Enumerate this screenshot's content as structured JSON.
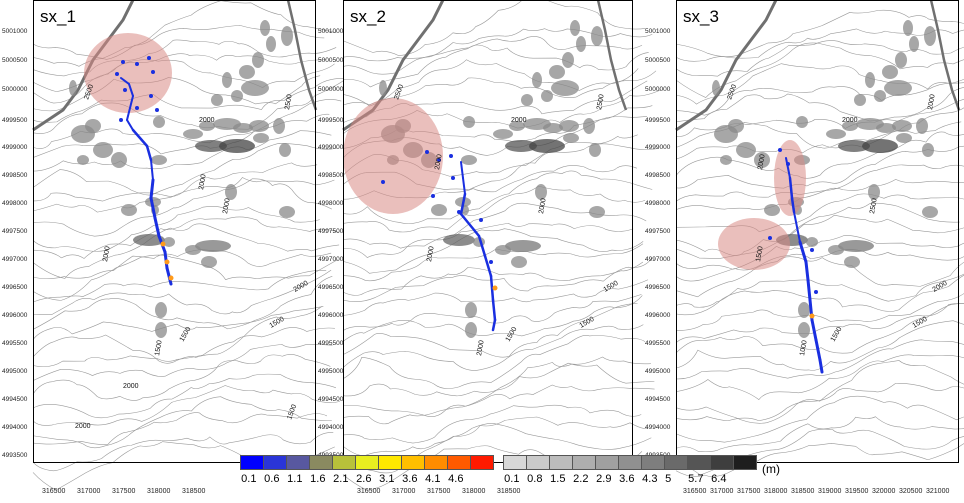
{
  "panels": [
    {
      "title": "sx_1"
    },
    {
      "title": "sx_2"
    },
    {
      "title": "sx_3"
    }
  ],
  "y_ticks": [
    "5001000",
    "5000500",
    "5000000",
    "4999500",
    "4999000",
    "4998500",
    "4998000",
    "4997500",
    "4997000",
    "4996500",
    "4996000",
    "4995500",
    "4995000",
    "4994500",
    "4994000",
    "4993500"
  ],
  "x_ticks_1": [
    "316500",
    "317000",
    "317500",
    "318000",
    "318500"
  ],
  "x_ticks_3": [
    "316500",
    "317000",
    "317500",
    "318000",
    "318500",
    "319000",
    "319500",
    "320000",
    "320500",
    "321000"
  ],
  "contour_labels": {
    "p1": [
      "2500",
      "2000",
      "2000",
      "2500",
      "2000",
      "2000",
      "2000",
      "1500",
      "1500",
      "1500",
      "2000",
      "1500",
      "2000"
    ],
    "p2": [
      "2500",
      "2000",
      "2000",
      "2500",
      "2000",
      "2000",
      "1500",
      "1500",
      "2000",
      "1500"
    ],
    "p3": [
      "2500",
      "2000",
      "2500",
      "2000",
      "2000",
      "1500",
      "1000",
      "1500",
      "2000",
      "1500"
    ]
  },
  "legend_blue": {
    "colors": [
      "#0000ff",
      "#2a35d8",
      "#5858a0",
      "#8a8a60",
      "#b8c13a",
      "#e8ee20",
      "#ffe800",
      "#ffbf00",
      "#ff8c00",
      "#ff5a00",
      "#ff1a00"
    ],
    "labels": [
      "0.1",
      "0.6",
      "1.1",
      "1.6",
      "2.1",
      "2.6",
      "3.1",
      "3.6",
      "4.1",
      "4.6"
    ]
  },
  "legend_gray": {
    "colors": [
      "#d8d8d8",
      "#cacaca",
      "#bcbcbc",
      "#aeaeae",
      "#a0a0a0",
      "#909090",
      "#7e7e7e",
      "#6a6a6a",
      "#555555",
      "#3e3e3e",
      "#1e1e1e"
    ],
    "labels": [
      "0.1",
      "0.8",
      "1.5",
      "2.2",
      "2.9",
      "3.6",
      "4.3",
      "5",
      "5.7",
      "6.4"
    ]
  },
  "unit": "(m)",
  "highlight_color": "#d98b85"
}
